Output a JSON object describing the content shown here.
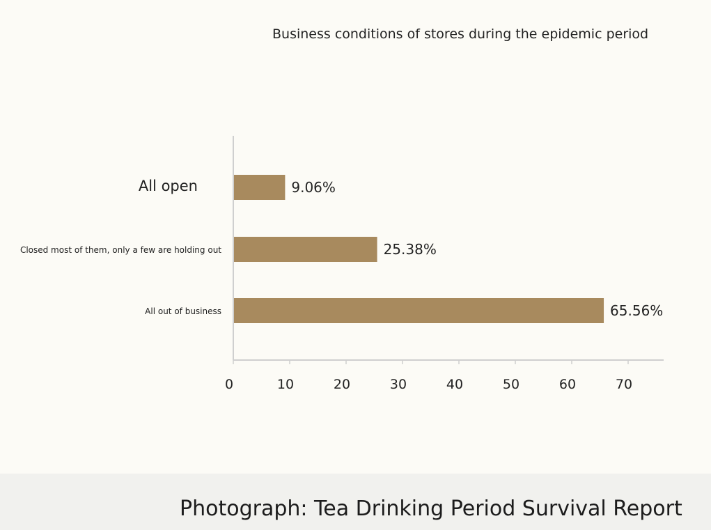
{
  "chart_data": {
    "type": "bar",
    "orientation": "horizontal",
    "title": "Business conditions of stores during the epidemic period",
    "categories": [
      "All open",
      "Closed most of them, only a few are holding out",
      "All out of business"
    ],
    "values": [
      9.06,
      25.38,
      65.56
    ],
    "value_labels": [
      "9.06%",
      "25.38%",
      "65.56%"
    ],
    "x_ticks": [
      "0",
      "10",
      "20",
      "30",
      "40",
      "50",
      "60",
      "70"
    ],
    "xlim": [
      0,
      70
    ],
    "grid": false,
    "bar_color": "#a88a5e"
  },
  "caption": "Photograph: Tea Drinking Period Survival Report"
}
